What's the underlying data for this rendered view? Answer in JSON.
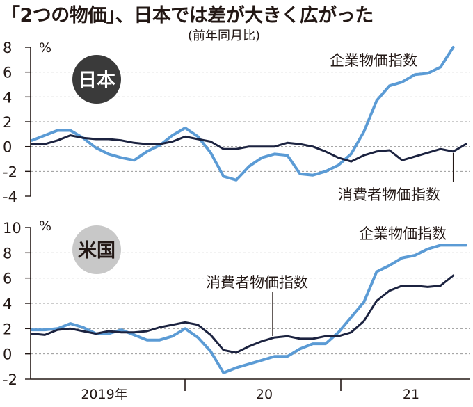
{
  "title": "「2つの物価」、日本では差が大きく広がった",
  "subtitle": "(前年同月比)",
  "colors": {
    "ppi": "#5b9bd5",
    "cpi": "#1c2340",
    "grid": "#999999",
    "text": "#231815"
  },
  "chart_data": [
    {
      "type": "line",
      "panel_label": "日本",
      "unit": "%",
      "ylim": [
        -4,
        8
      ],
      "yticks": [
        -4,
        -2,
        0,
        2,
        4,
        6,
        8
      ],
      "grid": true,
      "x": [
        "2019-01",
        "2019-02",
        "2019-03",
        "2019-04",
        "2019-05",
        "2019-06",
        "2019-07",
        "2019-08",
        "2019-09",
        "2019-10",
        "2019-11",
        "2019-12",
        "2020-01",
        "2020-02",
        "2020-03",
        "2020-04",
        "2020-05",
        "2020-06",
        "2020-07",
        "2020-08",
        "2020-09",
        "2020-10",
        "2020-11",
        "2020-12",
        "2021-01",
        "2021-02",
        "2021-03",
        "2021-04",
        "2021-05",
        "2021-06",
        "2021-07",
        "2021-08",
        "2021-09",
        "2021-10",
        "2021-11"
      ],
      "series": [
        {
          "name": "企業物価指数",
          "key": "ppi",
          "values": [
            0.5,
            0.9,
            1.3,
            1.3,
            0.7,
            -0.1,
            -0.6,
            -0.9,
            -1.1,
            -0.4,
            0.1,
            0.9,
            1.5,
            0.8,
            -0.5,
            -2.4,
            -2.7,
            -1.6,
            -0.9,
            -0.6,
            -0.7,
            -2.2,
            -2.3,
            -2.0,
            -1.5,
            -0.6,
            1.2,
            3.7,
            4.9,
            5.2,
            5.8,
            5.9,
            6.4,
            8.0,
            null
          ]
        },
        {
          "name": "消費者物価指数",
          "key": "cpi",
          "values": [
            0.2,
            0.2,
            0.5,
            0.9,
            0.7,
            0.6,
            0.6,
            0.5,
            0.3,
            0.2,
            0.2,
            0.4,
            0.8,
            0.6,
            0.4,
            -0.2,
            -0.2,
            0.0,
            0.0,
            0.0,
            0.3,
            0.2,
            0.0,
            -0.4,
            -0.9,
            -1.2,
            -0.7,
            -0.4,
            -0.3,
            -1.1,
            -0.8,
            -0.5,
            -0.2,
            -0.4,
            0.2
          ]
        }
      ]
    },
    {
      "type": "line",
      "panel_label": "米国",
      "unit": "%",
      "ylim": [
        -2,
        10
      ],
      "yticks": [
        -2,
        0,
        2,
        4,
        6,
        8,
        10
      ],
      "grid": true,
      "x": [
        "2019-01",
        "2019-02",
        "2019-03",
        "2019-04",
        "2019-05",
        "2019-06",
        "2019-07",
        "2019-08",
        "2019-09",
        "2019-10",
        "2019-11",
        "2019-12",
        "2020-01",
        "2020-02",
        "2020-03",
        "2020-04",
        "2020-05",
        "2020-06",
        "2020-07",
        "2020-08",
        "2020-09",
        "2020-10",
        "2020-11",
        "2020-12",
        "2021-01",
        "2021-02",
        "2021-03",
        "2021-04",
        "2021-05",
        "2021-06",
        "2021-07",
        "2021-08",
        "2021-09",
        "2021-10",
        "2021-11"
      ],
      "series": [
        {
          "name": "企業物価指数",
          "key": "ppi",
          "values": [
            1.9,
            1.9,
            2.0,
            2.4,
            2.1,
            1.6,
            1.6,
            1.9,
            1.5,
            1.1,
            1.1,
            1.4,
            2.0,
            1.3,
            0.2,
            -1.5,
            -1.1,
            -0.8,
            -0.5,
            -0.2,
            -0.2,
            0.4,
            0.8,
            0.8,
            1.7,
            2.9,
            4.1,
            6.5,
            7.0,
            7.6,
            7.8,
            8.3,
            8.6,
            8.6,
            8.6
          ]
        },
        {
          "name": "消費者物価指数",
          "key": "cpi",
          "values": [
            1.6,
            1.5,
            1.9,
            2.0,
            1.8,
            1.6,
            1.8,
            1.7,
            1.7,
            1.8,
            2.1,
            2.3,
            2.5,
            2.3,
            1.5,
            0.3,
            0.1,
            0.6,
            1.0,
            1.3,
            1.4,
            1.2,
            1.2,
            1.4,
            1.4,
            1.7,
            2.6,
            4.2,
            5.0,
            5.4,
            5.4,
            5.3,
            5.4,
            6.2,
            null
          ]
        }
      ]
    }
  ],
  "x_axis_labels": [
    "2019年",
    "20",
    "21"
  ],
  "annotations": {
    "japan_ppi_label": "企業物価指数",
    "japan_cpi_label": "消費者物価指数",
    "us_ppi_label": "企業物価指数",
    "us_cpi_label": "消費者物価指数"
  }
}
